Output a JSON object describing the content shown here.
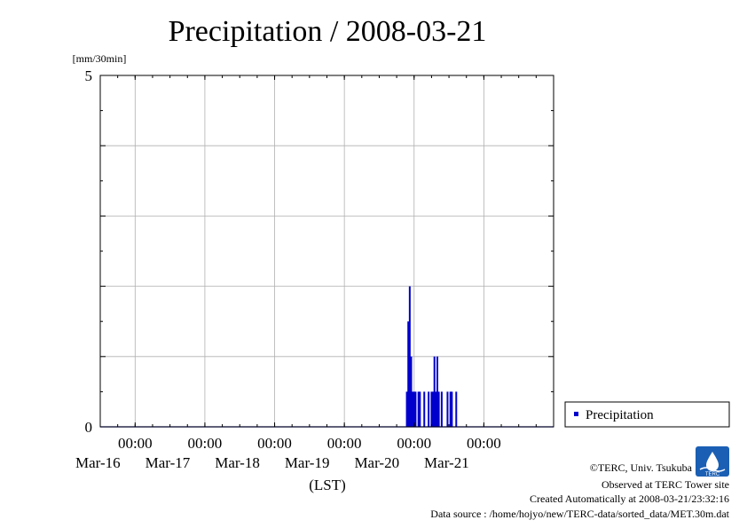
{
  "chart_data": {
    "type": "bar",
    "title": "Precipitation / 2008-03-21",
    "ylabel": "[mm/30min]",
    "xlabel": "(LST)",
    "ylim": [
      0,
      5
    ],
    "y_ticks": [
      "0",
      "5"
    ],
    "x_ticks": [
      {
        "time": "00:00",
        "date": "Mar-16"
      },
      {
        "time": "00:00",
        "date": "Mar-17"
      },
      {
        "time": "00:00",
        "date": "Mar-18"
      },
      {
        "time": "00:00",
        "date": "Mar-19"
      },
      {
        "time": "00:00",
        "date": "Mar-20"
      },
      {
        "time": "00:00",
        "date": "Mar-21"
      }
    ],
    "x_start_label": "Mar-15 12:00",
    "x_end_label": "Mar-21 24:00",
    "grid": true,
    "legend_position": "right",
    "series": [
      {
        "name": "Precipitation",
        "color": "#0000cc",
        "points": [
          {
            "x": "2008-03-19 21:30",
            "y": 0.5
          },
          {
            "x": "2008-03-19 22:00",
            "y": 1.5
          },
          {
            "x": "2008-03-19 22:30",
            "y": 2.0
          },
          {
            "x": "2008-03-19 23:00",
            "y": 1.0
          },
          {
            "x": "2008-03-19 23:30",
            "y": 0.5
          },
          {
            "x": "2008-03-20 00:00",
            "y": 0.5
          },
          {
            "x": "2008-03-20 00:30",
            "y": 0.5
          },
          {
            "x": "2008-03-20 01:30",
            "y": 0.5
          },
          {
            "x": "2008-03-20 02:00",
            "y": 0.5
          },
          {
            "x": "2008-03-20 03:30",
            "y": 0.5
          },
          {
            "x": "2008-03-20 05:00",
            "y": 0.5
          },
          {
            "x": "2008-03-20 06:00",
            "y": 0.5
          },
          {
            "x": "2008-03-20 06:30",
            "y": 0.5
          },
          {
            "x": "2008-03-20 07:00",
            "y": 1.0
          },
          {
            "x": "2008-03-20 07:30",
            "y": 0.5
          },
          {
            "x": "2008-03-20 08:00",
            "y": 1.0
          },
          {
            "x": "2008-03-20 08:30",
            "y": 0.5
          },
          {
            "x": "2008-03-20 09:30",
            "y": 0.5
          },
          {
            "x": "2008-03-20 11:30",
            "y": 0.5
          },
          {
            "x": "2008-03-20 12:30",
            "y": 0.5
          },
          {
            "x": "2008-03-20 13:00",
            "y": 0.5
          },
          {
            "x": "2008-03-20 14:30",
            "y": 0.5
          }
        ]
      }
    ]
  },
  "footer": {
    "copyright": "©TERC, Univ. Tsukuba",
    "observed": "Observed at TERC Tower site",
    "created": "Created Automatically at 2008-03-21/23:32:16",
    "source": "Data source : /home/hojyo/new/TERC-data/sorted_data/MET.30m.dat",
    "logo_text": "TERC"
  }
}
